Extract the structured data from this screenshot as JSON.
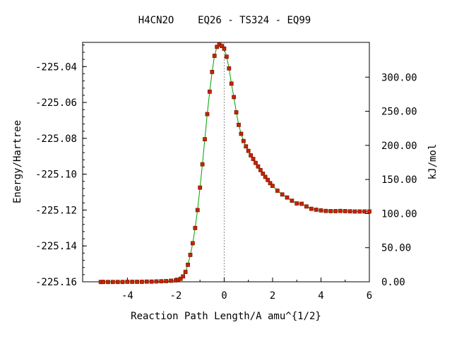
{
  "chart_data": {
    "type": "line",
    "title": "H4CN2O    EQ26 - TS324 - EQ99",
    "xlabel": "Reaction Path Length/A amu^{1/2}",
    "ylabel_left": "Energy/Hartree",
    "ylabel_right": "kJ/mol",
    "xlim": [
      -5.85,
      6.0
    ],
    "ylim": [
      -225.16,
      -225.0265
    ],
    "y2lim": [
      0.0,
      351.0
    ],
    "x_ticks": [
      -4,
      -2,
      0,
      2,
      4,
      6
    ],
    "x_tick_labels": [
      "-4",
      "-2",
      "0",
      "2",
      "4",
      "6"
    ],
    "y_ticks": [
      -225.04,
      -225.06,
      -225.08,
      -225.1,
      -225.12,
      -225.14,
      -225.16
    ],
    "y_tick_labels": [
      "-225.04",
      "-225.06",
      "-225.08",
      "-225.10",
      "-225.12",
      "-225.14",
      "-225.16"
    ],
    "y2_ticks": [
      300,
      250,
      200,
      150,
      100,
      50,
      0
    ],
    "y2_tick_labels": [
      "300.00",
      "250.00",
      "200.00",
      "150.00",
      "100.00",
      "50.00",
      "0.00"
    ],
    "ts_marker_x": 0,
    "line_color": "#00a000",
    "marker_color": "#cc2200",
    "marker_edge_color": "#7a1a00",
    "series": [
      {
        "x": [
          -5.1,
          -5.0,
          -4.8,
          -4.6,
          -4.4,
          -4.2,
          -4.0,
          -3.8,
          -3.6,
          -3.4,
          -3.2,
          -3.0,
          -2.8,
          -2.6,
          -2.4,
          -2.2,
          -2.0,
          -1.9,
          -1.8,
          -1.7,
          -1.6,
          -1.5,
          -1.4,
          -1.3,
          -1.2,
          -1.1,
          -1.0,
          -0.9,
          -0.8,
          -0.7,
          -0.6,
          -0.5,
          -0.4,
          -0.3,
          -0.2,
          -0.1,
          0.0,
          0.1,
          0.2,
          0.3,
          0.4,
          0.5,
          0.6,
          0.7,
          0.8,
          0.9,
          1.0,
          1.1,
          1.2,
          1.3,
          1.4,
          1.5,
          1.6,
          1.7,
          1.8,
          1.9,
          2.0,
          2.2,
          2.4,
          2.6,
          2.8,
          3.0,
          3.2,
          3.4,
          3.6,
          3.8,
          4.0,
          4.2,
          4.4,
          4.6,
          4.8,
          5.0,
          5.2,
          5.4,
          5.6,
          5.8,
          6.0
        ],
        "y": [
          -225.1601,
          -225.1601,
          -225.1601,
          -225.1601,
          -225.1601,
          -225.1601,
          -225.16,
          -225.16,
          -225.16,
          -225.16,
          -225.1599,
          -225.1599,
          -225.1598,
          -225.1597,
          -225.1596,
          -225.1594,
          -225.1592,
          -225.1589,
          -225.1583,
          -225.157,
          -225.1545,
          -225.1505,
          -225.145,
          -225.1385,
          -225.13,
          -225.12,
          -225.1075,
          -225.0945,
          -225.0805,
          -225.0665,
          -225.054,
          -225.043,
          -225.034,
          -225.029,
          -225.0277,
          -225.0285,
          -225.03,
          -225.0345,
          -225.041,
          -225.0495,
          -225.057,
          -225.0655,
          -225.0725,
          -225.0775,
          -225.0815,
          -225.0845,
          -225.087,
          -225.0895,
          -225.0915,
          -225.0937,
          -225.0957,
          -225.0977,
          -225.0997,
          -225.1015,
          -225.1032,
          -225.105,
          -225.1065,
          -225.1092,
          -225.1113,
          -225.113,
          -225.1148,
          -225.1163,
          -225.1165,
          -225.118,
          -225.1193,
          -225.1198,
          -225.1202,
          -225.1205,
          -225.1206,
          -225.1206,
          -225.1205,
          -225.1206,
          -225.1207,
          -225.1208,
          -225.1208,
          -225.1208,
          -225.1208
        ]
      }
    ]
  }
}
